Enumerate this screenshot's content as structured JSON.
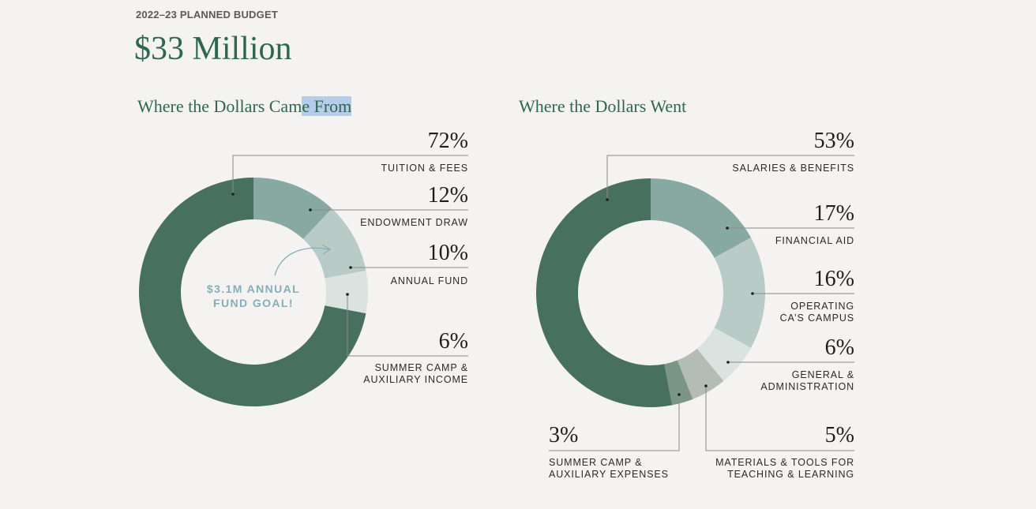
{
  "header": {
    "eyebrow": "2022–23 PLANNED BUDGET",
    "total": "$33 Million"
  },
  "chart_data": [
    {
      "type": "pie",
      "title": "Where the Dollars Came From",
      "title_parts": [
        "Where the Dollars Cam",
        "e From"
      ],
      "annotation": [
        "$3.1M ANNUAL",
        "FUND GOAL!"
      ],
      "slices": [
        {
          "label": "ENDOWMENT DRAW",
          "lines": [
            "ENDOWMENT DRAW"
          ],
          "value": 12,
          "display": "12%",
          "color": "#88a9a2"
        },
        {
          "label": "ANNUAL FUND",
          "lines": [
            "ANNUAL FUND"
          ],
          "value": 10,
          "display": "10%",
          "color": "#b8cbc6"
        },
        {
          "label": "SUMMER CAMP & AUXILIARY INCOME",
          "lines": [
            "SUMMER CAMP &",
            "AUXILIARY INCOME"
          ],
          "value": 6,
          "display": "6%",
          "color": "#dbe3e0"
        },
        {
          "label": "TUITION & FEES",
          "lines": [
            "TUITION & FEES"
          ],
          "value": 72,
          "display": "72%",
          "color": "#48705f"
        }
      ]
    },
    {
      "type": "pie",
      "title": "Where the Dollars Went",
      "slices": [
        {
          "label": "FINANCIAL AID",
          "lines": [
            "FINANCIAL AID"
          ],
          "value": 17,
          "display": "17%",
          "color": "#88a9a2"
        },
        {
          "label": "OPERATING CA’S CAMPUS",
          "lines": [
            "OPERATING",
            "CA’S CAMPUS"
          ],
          "value": 16,
          "display": "16%",
          "color": "#b8cbc6"
        },
        {
          "label": "GENERAL & ADMINISTRATION",
          "lines": [
            "GENERAL &",
            "ADMINISTRATION"
          ],
          "value": 6,
          "display": "6%",
          "color": "#dbe3e0"
        },
        {
          "label": "MATERIALS & TOOLS FOR TEACHING & LEARNING",
          "lines": [
            "MATERIALS & TOOLS FOR",
            "TEACHING & LEARNING"
          ],
          "value": 5,
          "display": "5%",
          "color": "#b3bdb6"
        },
        {
          "label": "SUMMER CAMP & AUXILIARY EXPENSES",
          "lines": [
            "SUMMER CAMP &",
            "AUXILIARY EXPENSES"
          ],
          "value": 3,
          "display": "3%",
          "color": "#7c9686"
        },
        {
          "label": "SALARIES & BENEFITS",
          "lines": [
            "SALARIES & BENEFITS"
          ],
          "value": 53,
          "display": "53%",
          "color": "#48705f"
        }
      ]
    }
  ]
}
